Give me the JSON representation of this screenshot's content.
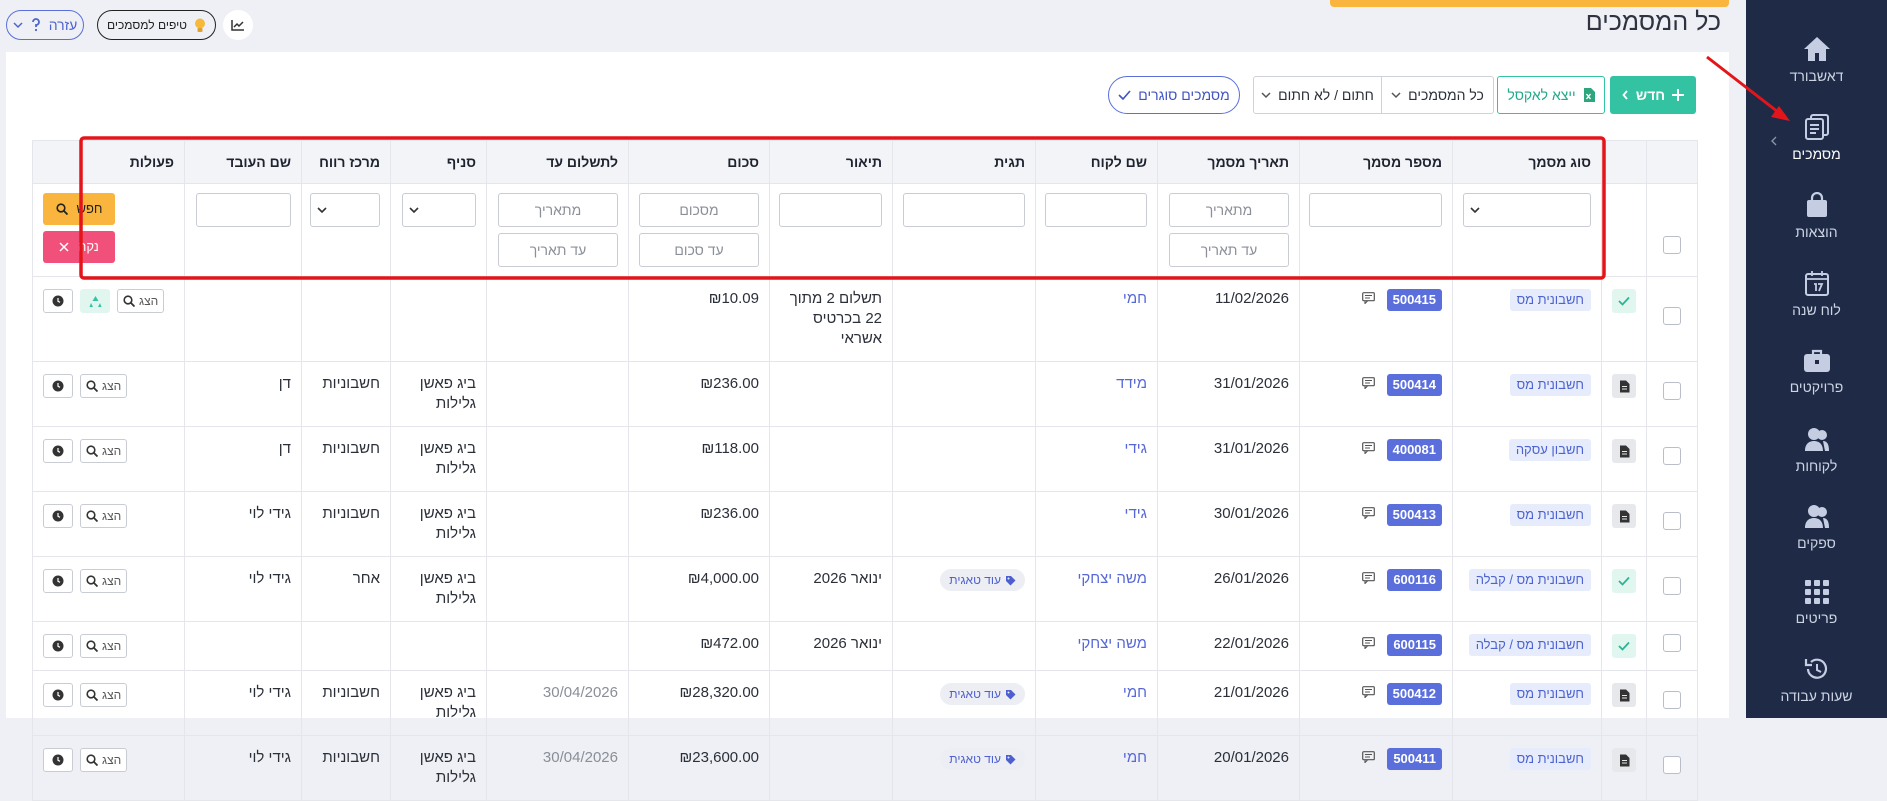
{
  "header": {
    "title": "כל המסמכים",
    "help": "עזרה",
    "tips": "טיפים למסמכים"
  },
  "sidebar": {
    "items": [
      "דאשבורד",
      "מסמכים",
      "הוצאות",
      "לוח שנה",
      "פרויקטים",
      "לקוחות",
      "ספקים",
      "פריטים",
      "שעות עבודה"
    ]
  },
  "toolbar": {
    "new": "חדש",
    "export": "ייצא לאקסל",
    "all_documents": "כל המסמכים",
    "signed_filter": "חתום / לא חתום",
    "closing_documents": "מסמכים סוגרים"
  },
  "table": {
    "columns": [
      "סוג מסמך",
      "מספר מסמך",
      "תאריך מסמך",
      "שם לקוח",
      "תגית",
      "תיאור",
      "סכום",
      "לתשלום עד",
      "סניף",
      "מרכז רווח",
      "שם העובד",
      "פעולות"
    ],
    "filters": {
      "from_date": "מתאריך",
      "to_date": "עד תאריך",
      "from_amount": "מסכום",
      "to_amount": "עד סכום",
      "search": "חפש",
      "clear": "נקה"
    },
    "view": "הצג",
    "rows": [
      [
        "חשבונית מס",
        "500415",
        "11/02/2026",
        "חמי",
        null,
        "תשלום 2 מתוך 22 בכרטיס אשראי",
        "₪10.09",
        null,
        null,
        null,
        null
      ],
      [
        "חשבונית מס",
        "500414",
        "31/01/2026",
        "מידד",
        null,
        null,
        "₪236.00",
        null,
        "ביג פאשן גלילות",
        "חשבוניות",
        "דן"
      ],
      [
        "חשבון עסקה",
        "400081",
        "31/01/2026",
        "גידי",
        null,
        null,
        "₪118.00",
        null,
        "ביג פאשן גלילות",
        "חשבוניות",
        "דן"
      ],
      [
        "חשבונית מס",
        "500413",
        "30/01/2026",
        "גידי",
        null,
        null,
        "₪236.00",
        null,
        "ביג פאשן גלילות",
        "חשבוניות",
        "גידי לוי"
      ],
      [
        "חשבונית מס / קבלה",
        "600116",
        "26/01/2026",
        "משה יצחקי",
        "עוד טאגית",
        "ינואר 2026",
        "₪4,000.00",
        null,
        "ביג פאשן גלילות",
        "אחר",
        "גידי לוי"
      ],
      [
        "חשבונית מס / קבלה",
        "600115",
        "22/01/2026",
        "משה יצחקי",
        null,
        "ינואר 2026",
        "₪472.00",
        null,
        null,
        null,
        null
      ],
      [
        "חשבונית מס",
        "500412",
        "21/01/2026",
        "חמי",
        "עוד טאגית",
        null,
        "₪28,320.00",
        "30/04/2026",
        "ביג פאשן גלילות",
        "חשבוניות",
        "גידי לוי"
      ],
      [
        "חשבונית מס",
        "500411",
        "20/01/2026",
        "חמי",
        "עוד טאגית",
        null,
        "₪23,600.00",
        "30/04/2026",
        "ביג פאשן גלילות",
        "חשבוניות",
        "גידי לוי"
      ]
    ]
  }
}
